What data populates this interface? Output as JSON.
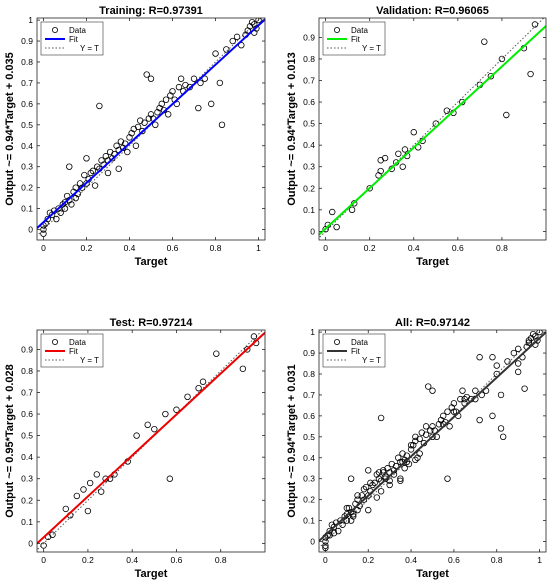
{
  "chart_data": [
    {
      "type": "scatter",
      "title": "Training: R=0.97391",
      "xlabel": "Target",
      "ylabel": "Output ~= 0.94*Target + 0.035",
      "xlim": [
        -0.03,
        1.03
      ],
      "ylim": [
        -0.05,
        1.01
      ],
      "xticks": [
        0,
        0.2,
        0.4,
        0.6,
        0.8,
        1
      ],
      "yticks": [
        0,
        0.1,
        0.2,
        0.3,
        0.4,
        0.5,
        0.6,
        0.7,
        0.8,
        0.9,
        1
      ],
      "xtick_labels": [
        "0",
        "0.2",
        "0.4",
        "0.6",
        "0.8",
        "1"
      ],
      "ytick_labels": [
        "0",
        "0.1",
        "0.2",
        "0.3",
        "0.4",
        "0.5",
        "0.6",
        "0.7",
        "0.8",
        "0.9",
        "1"
      ],
      "legend": {
        "placement": "top-left",
        "entries": [
          "Data",
          "Fit",
          "Y = T"
        ]
      },
      "fit": {
        "slope": 0.94,
        "intercept": 0.035,
        "color": "#0000ff"
      },
      "identity_color": "#555555",
      "grid": false,
      "points": [
        [
          0,
          0
        ],
        [
          0,
          0.02
        ],
        [
          0,
          -0.02
        ],
        [
          0.01,
          0.03
        ],
        [
          0.02,
          0.05
        ],
        [
          0.03,
          0.08
        ],
        [
          0.04,
          0.07
        ],
        [
          0.05,
          0.09
        ],
        [
          0.06,
          0.05
        ],
        [
          0.07,
          0.1
        ],
        [
          0.08,
          0.08
        ],
        [
          0.09,
          0.12
        ],
        [
          0.1,
          0.13
        ],
        [
          0.1,
          0.1
        ],
        [
          0.11,
          0.16
        ],
        [
          0.12,
          0.14
        ],
        [
          0.12,
          0.3
        ],
        [
          0.13,
          0.12
        ],
        [
          0.14,
          0.18
        ],
        [
          0.15,
          0.2
        ],
        [
          0.15,
          0.15
        ],
        [
          0.16,
          0.17
        ],
        [
          0.17,
          0.22
        ],
        [
          0.18,
          0.2
        ],
        [
          0.19,
          0.26
        ],
        [
          0.2,
          0.22
        ],
        [
          0.2,
          0.34
        ],
        [
          0.21,
          0.24
        ],
        [
          0.22,
          0.27
        ],
        [
          0.23,
          0.28
        ],
        [
          0.24,
          0.21
        ],
        [
          0.25,
          0.3
        ],
        [
          0.26,
          0.29
        ],
        [
          0.26,
          0.59
        ],
        [
          0.27,
          0.33
        ],
        [
          0.28,
          0.31
        ],
        [
          0.29,
          0.35
        ],
        [
          0.3,
          0.33
        ],
        [
          0.3,
          0.27
        ],
        [
          0.31,
          0.37
        ],
        [
          0.32,
          0.34
        ],
        [
          0.33,
          0.36
        ],
        [
          0.34,
          0.4
        ],
        [
          0.35,
          0.38
        ],
        [
          0.35,
          0.29
        ],
        [
          0.36,
          0.42
        ],
        [
          0.37,
          0.39
        ],
        [
          0.38,
          0.41
        ],
        [
          0.39,
          0.37
        ],
        [
          0.4,
          0.44
        ],
        [
          0.41,
          0.46
        ],
        [
          0.42,
          0.48
        ],
        [
          0.43,
          0.4
        ],
        [
          0.44,
          0.49
        ],
        [
          0.45,
          0.52
        ],
        [
          0.46,
          0.47
        ],
        [
          0.47,
          0.51
        ],
        [
          0.48,
          0.74
        ],
        [
          0.49,
          0.53
        ],
        [
          0.5,
          0.55
        ],
        [
          0.5,
          0.72
        ],
        [
          0.51,
          0.53
        ],
        [
          0.52,
          0.5
        ],
        [
          0.53,
          0.56
        ],
        [
          0.54,
          0.58
        ],
        [
          0.55,
          0.6
        ],
        [
          0.56,
          0.57
        ],
        [
          0.57,
          0.62
        ],
        [
          0.58,
          0.55
        ],
        [
          0.59,
          0.64
        ],
        [
          0.6,
          0.66
        ],
        [
          0.61,
          0.62
        ],
        [
          0.62,
          0.6
        ],
        [
          0.63,
          0.68
        ],
        [
          0.64,
          0.72
        ],
        [
          0.65,
          0.66
        ],
        [
          0.66,
          0.69
        ],
        [
          0.68,
          0.68
        ],
        [
          0.7,
          0.72
        ],
        [
          0.72,
          0.58
        ],
        [
          0.73,
          0.7
        ],
        [
          0.75,
          0.72
        ],
        [
          0.78,
          0.6
        ],
        [
          0.8,
          0.84
        ],
        [
          0.82,
          0.7
        ],
        [
          0.83,
          0.5
        ],
        [
          0.85,
          0.86
        ],
        [
          0.88,
          0.9
        ],
        [
          0.9,
          0.92
        ],
        [
          0.92,
          0.88
        ],
        [
          0.94,
          0.93
        ],
        [
          0.95,
          0.95
        ],
        [
          0.96,
          0.97
        ],
        [
          0.97,
          0.99
        ],
        [
          0.98,
          0.98
        ],
        [
          0.98,
          0.94
        ],
        [
          0.99,
          0.96
        ],
        [
          1,
          1
        ]
      ]
    },
    {
      "type": "scatter",
      "title": "Validation: R=0.96065",
      "xlabel": "Target",
      "ylabel": "Output ~= 0.94*Target + 0.013",
      "xlim": [
        -0.03,
        1.0
      ],
      "ylim": [
        -0.04,
        0.99
      ],
      "xticks": [
        0,
        0.2,
        0.4,
        0.6,
        0.8
      ],
      "yticks": [
        0,
        0.1,
        0.2,
        0.3,
        0.4,
        0.5,
        0.6,
        0.7,
        0.8,
        0.9
      ],
      "xtick_labels": [
        "0",
        "0.2",
        "0.4",
        "0.6",
        "0.8"
      ],
      "ytick_labels": [
        "0",
        "0.1",
        "0.2",
        "0.3",
        "0.4",
        "0.5",
        "0.6",
        "0.7",
        "0.8",
        "0.9"
      ],
      "legend": {
        "placement": "top-left",
        "entries": [
          "Data",
          "Fit",
          "Y = T"
        ]
      },
      "fit": {
        "slope": 0.94,
        "intercept": 0.013,
        "color": "#00ee00"
      },
      "identity_color": "#555555",
      "grid": false,
      "points": [
        [
          0,
          0.01
        ],
        [
          0.01,
          0.03
        ],
        [
          0.03,
          0.09
        ],
        [
          0.05,
          0.02
        ],
        [
          0.12,
          0.1
        ],
        [
          0.13,
          0.13
        ],
        [
          0.2,
          0.2
        ],
        [
          0.24,
          0.26
        ],
        [
          0.25,
          0.33
        ],
        [
          0.25,
          0.28
        ],
        [
          0.27,
          0.34
        ],
        [
          0.3,
          0.29
        ],
        [
          0.32,
          0.32
        ],
        [
          0.33,
          0.36
        ],
        [
          0.35,
          0.3
        ],
        [
          0.36,
          0.38
        ],
        [
          0.37,
          0.35
        ],
        [
          0.4,
          0.46
        ],
        [
          0.42,
          0.39
        ],
        [
          0.44,
          0.42
        ],
        [
          0.5,
          0.5
        ],
        [
          0.55,
          0.56
        ],
        [
          0.58,
          0.55
        ],
        [
          0.62,
          0.6
        ],
        [
          0.7,
          0.68
        ],
        [
          0.72,
          0.88
        ],
        [
          0.75,
          0.72
        ],
        [
          0.8,
          0.8
        ],
        [
          0.82,
          0.54
        ],
        [
          0.9,
          0.85
        ],
        [
          0.93,
          0.73
        ],
        [
          0.95,
          0.96
        ]
      ]
    },
    {
      "type": "scatter",
      "title": "Test: R=0.97214",
      "xlabel": "Target",
      "ylabel": "Output ~= 0.95*Target + 0.028",
      "xlim": [
        -0.03,
        1.0
      ],
      "ylim": [
        -0.04,
        0.99
      ],
      "xticks": [
        0,
        0.2,
        0.4,
        0.6,
        0.8
      ],
      "yticks": [
        0,
        0.1,
        0.2,
        0.3,
        0.4,
        0.5,
        0.6,
        0.7,
        0.8,
        0.9
      ],
      "xtick_labels": [
        "0",
        "0.2",
        "0.4",
        "0.6",
        "0.8"
      ],
      "ytick_labels": [
        "0",
        "0.1",
        "0.2",
        "0.3",
        "0.4",
        "0.5",
        "0.6",
        "0.7",
        "0.8",
        "0.9"
      ],
      "legend": {
        "placement": "top-left",
        "entries": [
          "Data",
          "Fit",
          "Y = T"
        ]
      },
      "fit": {
        "slope": 0.95,
        "intercept": 0.028,
        "color": "#ee0000"
      },
      "identity_color": "#555555",
      "grid": false,
      "points": [
        [
          0,
          -0.01
        ],
        [
          0.02,
          0.03
        ],
        [
          0.04,
          0.04
        ],
        [
          0.1,
          0.16
        ],
        [
          0.12,
          0.13
        ],
        [
          0.15,
          0.22
        ],
        [
          0.18,
          0.25
        ],
        [
          0.2,
          0.15
        ],
        [
          0.21,
          0.28
        ],
        [
          0.24,
          0.32
        ],
        [
          0.26,
          0.24
        ],
        [
          0.28,
          0.3
        ],
        [
          0.3,
          0.3
        ],
        [
          0.32,
          0.32
        ],
        [
          0.38,
          0.38
        ],
        [
          0.42,
          0.5
        ],
        [
          0.47,
          0.55
        ],
        [
          0.5,
          0.53
        ],
        [
          0.55,
          0.6
        ],
        [
          0.57,
          0.3
        ],
        [
          0.6,
          0.62
        ],
        [
          0.65,
          0.68
        ],
        [
          0.7,
          0.72
        ],
        [
          0.72,
          0.75
        ],
        [
          0.78,
          0.88
        ],
        [
          0.9,
          0.81
        ],
        [
          0.92,
          0.9
        ],
        [
          0.95,
          0.96
        ],
        [
          0.96,
          0.93
        ]
      ]
    },
    {
      "type": "scatter",
      "title": "All: R=0.97142",
      "xlabel": "Target",
      "ylabel": "Output ~= 0.94*Target + 0.031",
      "xlim": [
        -0.03,
        1.03
      ],
      "ylim": [
        -0.05,
        1.01
      ],
      "xticks": [
        0,
        0.2,
        0.4,
        0.6,
        0.8,
        1
      ],
      "yticks": [
        0,
        0.1,
        0.2,
        0.3,
        0.4,
        0.5,
        0.6,
        0.7,
        0.8,
        0.9,
        1
      ],
      "xtick_labels": [
        "0",
        "0.2",
        "0.4",
        "0.6",
        "0.8",
        "1"
      ],
      "ytick_labels": [
        "0",
        "0.1",
        "0.2",
        "0.3",
        "0.4",
        "0.5",
        "0.6",
        "0.7",
        "0.8",
        "0.9",
        "1"
      ],
      "legend": {
        "placement": "top-left",
        "entries": [
          "Data",
          "Fit",
          "Y = T"
        ]
      },
      "fit": {
        "slope": 0.94,
        "intercept": 0.031,
        "color": "#333333"
      },
      "identity_color": "#555555",
      "grid": false,
      "points": [
        [
          0,
          0
        ],
        [
          0,
          0.02
        ],
        [
          0,
          -0.02
        ],
        [
          0,
          -0.03
        ],
        [
          0.01,
          0.03
        ],
        [
          0.02,
          0.05
        ],
        [
          0.02,
          0.03
        ],
        [
          0.03,
          0.08
        ],
        [
          0.04,
          0.07
        ],
        [
          0.04,
          0.04
        ],
        [
          0.05,
          0.09
        ],
        [
          0.06,
          0.05
        ],
        [
          0.07,
          0.1
        ],
        [
          0.08,
          0.08
        ],
        [
          0.09,
          0.12
        ],
        [
          0.1,
          0.13
        ],
        [
          0.1,
          0.1
        ],
        [
          0.1,
          0.16
        ],
        [
          0.11,
          0.16
        ],
        [
          0.12,
          0.14
        ],
        [
          0.12,
          0.3
        ],
        [
          0.12,
          0.1
        ],
        [
          0.13,
          0.12
        ],
        [
          0.13,
          0.13
        ],
        [
          0.14,
          0.18
        ],
        [
          0.15,
          0.2
        ],
        [
          0.15,
          0.15
        ],
        [
          0.15,
          0.22
        ],
        [
          0.16,
          0.17
        ],
        [
          0.17,
          0.22
        ],
        [
          0.18,
          0.2
        ],
        [
          0.18,
          0.25
        ],
        [
          0.19,
          0.26
        ],
        [
          0.2,
          0.22
        ],
        [
          0.2,
          0.34
        ],
        [
          0.2,
          0.15
        ],
        [
          0.21,
          0.24
        ],
        [
          0.21,
          0.28
        ],
        [
          0.22,
          0.27
        ],
        [
          0.23,
          0.28
        ],
        [
          0.24,
          0.21
        ],
        [
          0.24,
          0.32
        ],
        [
          0.25,
          0.3
        ],
        [
          0.25,
          0.33
        ],
        [
          0.26,
          0.29
        ],
        [
          0.26,
          0.59
        ],
        [
          0.26,
          0.24
        ],
        [
          0.27,
          0.33
        ],
        [
          0.27,
          0.34
        ],
        [
          0.28,
          0.31
        ],
        [
          0.28,
          0.3
        ],
        [
          0.29,
          0.35
        ],
        [
          0.3,
          0.33
        ],
        [
          0.3,
          0.27
        ],
        [
          0.3,
          0.29
        ],
        [
          0.31,
          0.37
        ],
        [
          0.32,
          0.34
        ],
        [
          0.32,
          0.32
        ],
        [
          0.33,
          0.36
        ],
        [
          0.34,
          0.4
        ],
        [
          0.35,
          0.38
        ],
        [
          0.35,
          0.29
        ],
        [
          0.35,
          0.3
        ],
        [
          0.36,
          0.42
        ],
        [
          0.36,
          0.38
        ],
        [
          0.37,
          0.39
        ],
        [
          0.37,
          0.35
        ],
        [
          0.38,
          0.41
        ],
        [
          0.38,
          0.38
        ],
        [
          0.39,
          0.37
        ],
        [
          0.4,
          0.44
        ],
        [
          0.4,
          0.46
        ],
        [
          0.41,
          0.46
        ],
        [
          0.42,
          0.48
        ],
        [
          0.42,
          0.39
        ],
        [
          0.42,
          0.5
        ],
        [
          0.43,
          0.4
        ],
        [
          0.44,
          0.49
        ],
        [
          0.44,
          0.42
        ],
        [
          0.45,
          0.52
        ],
        [
          0.46,
          0.47
        ],
        [
          0.47,
          0.51
        ],
        [
          0.47,
          0.55
        ],
        [
          0.48,
          0.74
        ],
        [
          0.49,
          0.53
        ],
        [
          0.5,
          0.55
        ],
        [
          0.5,
          0.72
        ],
        [
          0.5,
          0.5
        ],
        [
          0.51,
          0.53
        ],
        [
          0.52,
          0.5
        ],
        [
          0.53,
          0.56
        ],
        [
          0.54,
          0.58
        ],
        [
          0.55,
          0.6
        ],
        [
          0.55,
          0.56
        ],
        [
          0.56,
          0.57
        ],
        [
          0.57,
          0.62
        ],
        [
          0.57,
          0.3
        ],
        [
          0.58,
          0.55
        ],
        [
          0.59,
          0.64
        ],
        [
          0.6,
          0.66
        ],
        [
          0.6,
          0.62
        ],
        [
          0.61,
          0.62
        ],
        [
          0.62,
          0.6
        ],
        [
          0.63,
          0.68
        ],
        [
          0.64,
          0.72
        ],
        [
          0.65,
          0.66
        ],
        [
          0.65,
          0.68
        ],
        [
          0.66,
          0.69
        ],
        [
          0.68,
          0.68
        ],
        [
          0.7,
          0.72
        ],
        [
          0.7,
          0.68
        ],
        [
          0.72,
          0.58
        ],
        [
          0.72,
          0.88
        ],
        [
          0.73,
          0.7
        ],
        [
          0.75,
          0.72
        ],
        [
          0.78,
          0.6
        ],
        [
          0.78,
          0.88
        ],
        [
          0.8,
          0.84
        ],
        [
          0.8,
          0.8
        ],
        [
          0.82,
          0.7
        ],
        [
          0.82,
          0.54
        ],
        [
          0.83,
          0.5
        ],
        [
          0.85,
          0.86
        ],
        [
          0.88,
          0.9
        ],
        [
          0.9,
          0.92
        ],
        [
          0.9,
          0.81
        ],
        [
          0.9,
          0.85
        ],
        [
          0.92,
          0.88
        ],
        [
          0.93,
          0.73
        ],
        [
          0.94,
          0.93
        ],
        [
          0.95,
          0.95
        ],
        [
          0.95,
          0.96
        ],
        [
          0.96,
          0.97
        ],
        [
          0.97,
          0.99
        ],
        [
          0.98,
          0.98
        ],
        [
          0.98,
          0.94
        ],
        [
          0.99,
          0.96
        ],
        [
          1,
          1
        ]
      ]
    }
  ]
}
